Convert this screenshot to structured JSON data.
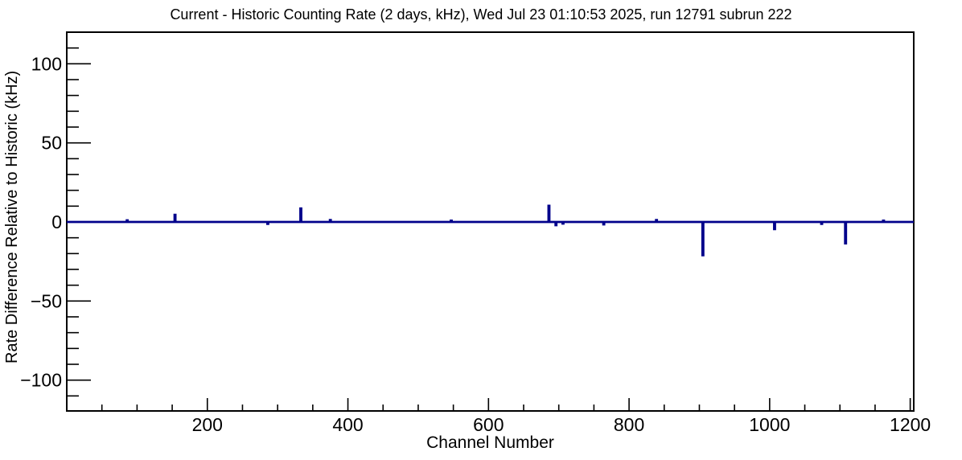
{
  "chart_data": {
    "type": "line",
    "title": "Current - Historic Counting Rate (2 days, kHz), Wed Jul 23 01:10:53 2025, run 12791 subrun 222",
    "xlabel": "Channel Number",
    "ylabel": "Rate Difference Relative to Historic (kHz)",
    "xlim": [
      0,
      1205
    ],
    "ylim": [
      -119.5,
      120.0
    ],
    "x_major_ticks": [
      200,
      400,
      600,
      800,
      1000,
      1200
    ],
    "x_minor_tick_step": 50,
    "y_major_ticks": [
      -100,
      -50,
      0,
      50,
      100
    ],
    "y_minor_tick_step": 10,
    "grid": false,
    "legend": false,
    "frame_color": "#000000",
    "line_color": "#00008b",
    "background": "#ffffff",
    "series_name": "current-minus-historic-rate",
    "baseline_value": 0,
    "spikes": [
      {
        "channel": 86,
        "value": 1.0
      },
      {
        "channel": 154,
        "value": 4.5
      },
      {
        "channel": 286,
        "value": -1.2
      },
      {
        "channel": 333,
        "value": 8.5
      },
      {
        "channel": 375,
        "value": 1.2
      },
      {
        "channel": 547,
        "value": 0.8
      },
      {
        "channel": 686,
        "value": 10.2
      },
      {
        "channel": 696,
        "value": -2.0
      },
      {
        "channel": 706,
        "value": -1.0
      },
      {
        "channel": 764,
        "value": -1.5
      },
      {
        "channel": 839,
        "value": 1.2
      },
      {
        "channel": 905,
        "value": -21.0
      },
      {
        "channel": 1007,
        "value": -4.5
      },
      {
        "channel": 1074,
        "value": -1.2
      },
      {
        "channel": 1108,
        "value": -13.5
      },
      {
        "channel": 1162,
        "value": 0.8
      }
    ]
  }
}
